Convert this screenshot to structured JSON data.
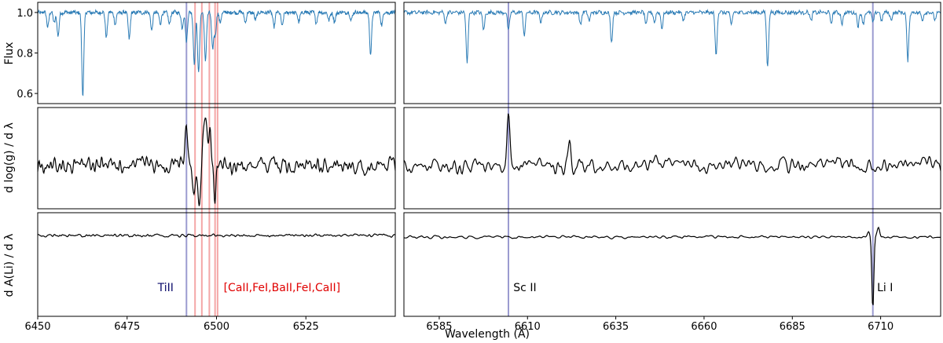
{
  "chart_data": {
    "type": "line",
    "xlabel": "Wavelength (Å)",
    "colors": {
      "flux": "#2a7bb5",
      "derivative": "#000000",
      "blue_marker": "#9b9bd0",
      "red_marker": "#f08a8a",
      "tiII_text": "#0b0b6b",
      "red_text": "#e00000"
    },
    "panels": {
      "left": {
        "xlim": [
          6450,
          6550
        ],
        "xticks": [
          6450,
          6475,
          6500,
          6525
        ]
      },
      "right": {
        "xlim": [
          6575,
          6727
        ],
        "xticks": [
          6585,
          6610,
          6635,
          6660,
          6685,
          6710
        ]
      }
    },
    "rows": [
      {
        "ylabel": "Flux",
        "ylim": [
          0.55,
          1.05
        ],
        "yticks": [
          0.6,
          0.8,
          1.0
        ],
        "yticklabels": [
          "0.6",
          "0.8",
          "1.0"
        ]
      },
      {
        "ylabel": "d log(g) / d λ"
      },
      {
        "ylabel": "d A(Li) / d λ"
      }
    ],
    "markers": {
      "blue": [
        6491.6,
        6604.6,
        6707.8
      ],
      "red": [
        6494.0,
        6495.9,
        6498.0,
        6499.6,
        6500.3
      ]
    },
    "annotations": [
      {
        "text": "TiII",
        "x": 6488,
        "color": "tiII_text"
      },
      {
        "text": "[CaII,FeI,BaII,FeI,CaII]",
        "x": 6502,
        "color": "red_text"
      },
      {
        "text": "Sc II",
        "x": 6606,
        "color": "derivative"
      },
      {
        "text": "Li I",
        "x": 6709,
        "color": "derivative"
      }
    ],
    "flux_lines": [
      {
        "x": 6452.8,
        "depth": 0.07
      },
      {
        "x": 6454.6,
        "depth": 0.05
      },
      {
        "x": 6455.7,
        "depth": 0.12
      },
      {
        "x": 6462.6,
        "depth": 0.41
      },
      {
        "x": 6469.2,
        "depth": 0.12
      },
      {
        "x": 6471.7,
        "depth": 0.06
      },
      {
        "x": 6475.6,
        "depth": 0.13
      },
      {
        "x": 6481.9,
        "depth": 0.09
      },
      {
        "x": 6484.3,
        "depth": 0.06
      },
      {
        "x": 6486.8,
        "depth": 0.06
      },
      {
        "x": 6490.4,
        "depth": 0.08
      },
      {
        "x": 6491.6,
        "depth": 0.14
      },
      {
        "x": 6493.8,
        "depth": 0.25
      },
      {
        "x": 6494.98,
        "depth": 0.3
      },
      {
        "x": 6496.9,
        "depth": 0.24
      },
      {
        "x": 6498.9,
        "depth": 0.18
      },
      {
        "x": 6499.65,
        "depth": 0.11
      },
      {
        "x": 6501.0,
        "depth": 0.05
      },
      {
        "x": 6508.1,
        "depth": 0.05
      },
      {
        "x": 6510.9,
        "depth": 0.04
      },
      {
        "x": 6516.1,
        "depth": 0.07
      },
      {
        "x": 6518.4,
        "depth": 0.07
      },
      {
        "x": 6523.0,
        "depth": 0.05
      },
      {
        "x": 6527.9,
        "depth": 0.05
      },
      {
        "x": 6531.4,
        "depth": 0.04
      },
      {
        "x": 6533.0,
        "depth": 0.05
      },
      {
        "x": 6537.6,
        "depth": 0.04
      },
      {
        "x": 6543.1,
        "depth": 0.21
      },
      {
        "x": 6546.2,
        "depth": 0.06
      },
      {
        "x": 6586.8,
        "depth": 0.05
      },
      {
        "x": 6592.9,
        "depth": 0.25
      },
      {
        "x": 6597.6,
        "depth": 0.09
      },
      {
        "x": 6604.6,
        "depth": 0.09
      },
      {
        "x": 6609.1,
        "depth": 0.11
      },
      {
        "x": 6613.8,
        "depth": 0.05
      },
      {
        "x": 6625.0,
        "depth": 0.06
      },
      {
        "x": 6627.5,
        "depth": 0.04
      },
      {
        "x": 6633.8,
        "depth": 0.15
      },
      {
        "x": 6643.6,
        "depth": 0.06
      },
      {
        "x": 6646.0,
        "depth": 0.05
      },
      {
        "x": 6648.1,
        "depth": 0.08
      },
      {
        "x": 6654.2,
        "depth": 0.04
      },
      {
        "x": 6663.4,
        "depth": 0.21
      },
      {
        "x": 6667.7,
        "depth": 0.06
      },
      {
        "x": 6677.99,
        "depth": 0.27
      },
      {
        "x": 6690.3,
        "depth": 0.04
      },
      {
        "x": 6696.0,
        "depth": 0.05
      },
      {
        "x": 6699.1,
        "depth": 0.06
      },
      {
        "x": 6703.6,
        "depth": 0.07
      },
      {
        "x": 6705.1,
        "depth": 0.06
      },
      {
        "x": 6707.8,
        "depth": 0.05
      },
      {
        "x": 6710.3,
        "depth": 0.04
      },
      {
        "x": 6713.0,
        "depth": 0.04
      },
      {
        "x": 6717.7,
        "depth": 0.24
      },
      {
        "x": 6721.8,
        "depth": 0.04
      },
      {
        "x": 6725.4,
        "depth": 0.04
      }
    ]
  }
}
